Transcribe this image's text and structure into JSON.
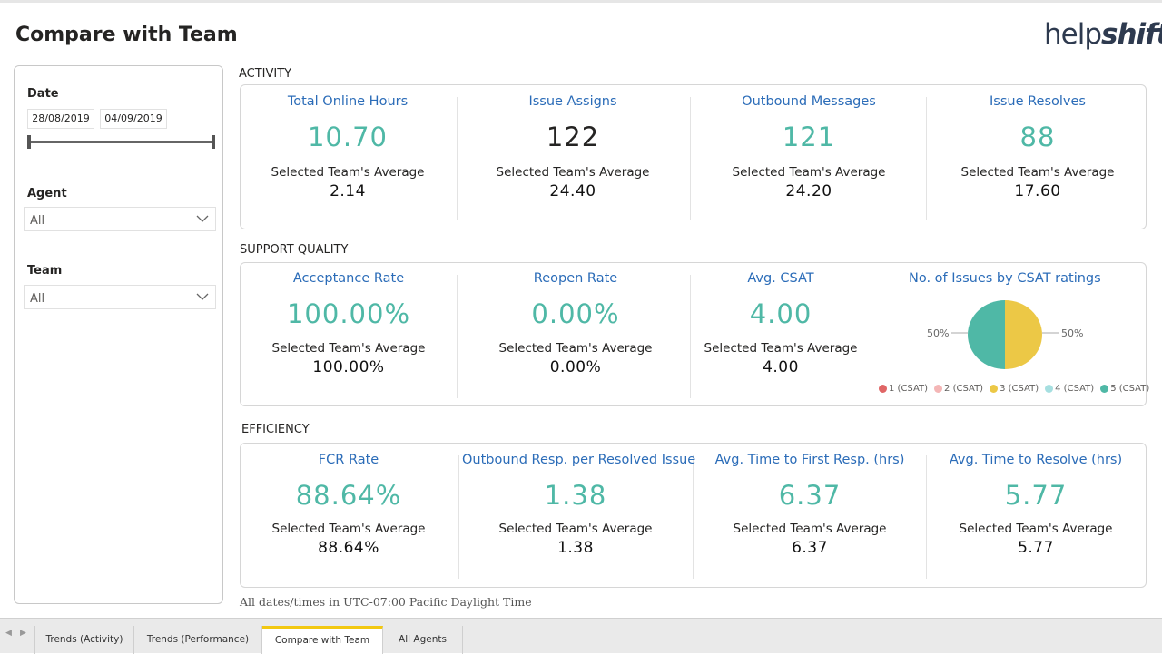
{
  "page": {
    "title": "Compare with Team"
  },
  "brand": {
    "logo_part1": "help",
    "logo_part2": "shift"
  },
  "filters": {
    "date": {
      "label": "Date",
      "start": "28/08/2019",
      "end": "04/09/2019"
    },
    "agent": {
      "label": "Agent",
      "value": "All"
    },
    "team": {
      "label": "Team",
      "value": "All"
    }
  },
  "activity": {
    "title": "ACTIVITY",
    "kpis": [
      {
        "label": "Total Online Hours",
        "value": "10.70",
        "avg_label": "Selected Team's Average",
        "avg_value": "2.14"
      },
      {
        "label": "Issue Assigns",
        "value": "122",
        "avg_label": "Selected Team's Average",
        "avg_value": "24.40"
      },
      {
        "label": "Outbound Messages",
        "value": "121",
        "avg_label": "Selected Team's Average",
        "avg_value": "24.20"
      },
      {
        "label": "Issue Resolves",
        "value": "88",
        "avg_label": "Selected Team's Average",
        "avg_value": "17.60"
      }
    ]
  },
  "support_quality": {
    "title": "SUPPORT QUALITY",
    "kpis": [
      {
        "label": "Acceptance Rate",
        "value": "100.00%",
        "avg_label": "Selected Team's Average",
        "avg_value": "100.00%"
      },
      {
        "label": "Reopen Rate",
        "value": "0.00%",
        "avg_label": "Selected Team's Average",
        "avg_value": "0.00%"
      },
      {
        "label": "Avg. CSAT",
        "value": "4.00",
        "avg_label": "Selected Team's Average",
        "avg_value": "4.00"
      }
    ],
    "pie": {
      "title": "No. of Issues by CSAT ratings",
      "left_pct": "50%",
      "right_pct": "50%",
      "legend": [
        {
          "label": "1 (CSAT)",
          "color": "#e06666"
        },
        {
          "label": "2 (CSAT)",
          "color": "#f4b6b6"
        },
        {
          "label": "3 (CSAT)",
          "color": "#ecc846"
        },
        {
          "label": "4 (CSAT)",
          "color": "#a6dfe0"
        },
        {
          "label": "5 (CSAT)",
          "color": "#4fb8a6"
        }
      ]
    }
  },
  "efficiency": {
    "title": "EFFICIENCY",
    "kpis": [
      {
        "label": "FCR Rate",
        "value": "88.64%",
        "avg_label": "Selected Team's Average",
        "avg_value": "88.64%"
      },
      {
        "label": "Outbound Resp. per Resolved Issue",
        "value": "1.38",
        "avg_label": "Selected Team's Average",
        "avg_value": "1.38"
      },
      {
        "label": "Avg. Time to First Resp. (hrs)",
        "value": "6.37",
        "avg_label": "Selected Team's Average",
        "avg_value": "6.37"
      },
      {
        "label": "Avg. Time to Resolve (hrs)",
        "value": "5.77",
        "avg_label": "Selected Team's Average",
        "avg_value": "5.77"
      }
    ]
  },
  "footnote": "All dates/times in UTC-07:00 Pacific Daylight Time",
  "tabs": [
    "Trends (Activity)",
    "Trends (Performance)",
    "Compare with Team",
    "All Agents"
  ],
  "colors": {
    "accent_teal": "#4fb8a6",
    "label_blue": "#2b6cb8",
    "csat_3": "#ecc846",
    "csat_5": "#4fb8a6",
    "active_tab": "#f2c811"
  }
}
